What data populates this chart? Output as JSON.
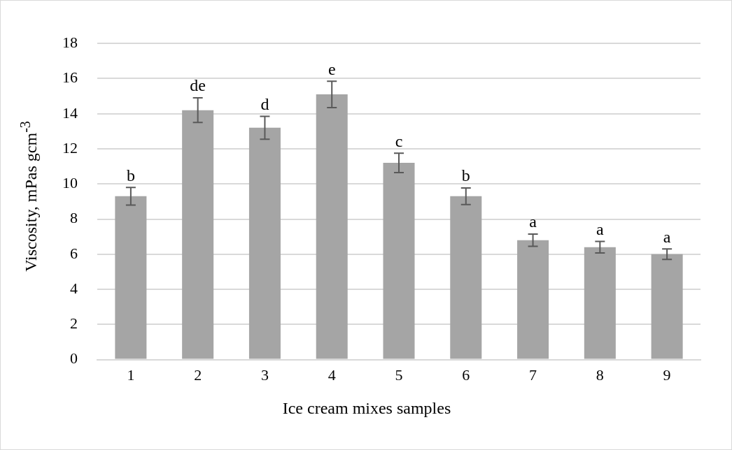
{
  "chart_data": {
    "type": "bar",
    "xlabel": "Ice cream mixes samples",
    "ylabel": "Viscosity, mPas gcm$^{-3}$",
    "categories": [
      "1",
      "2",
      "3",
      "4",
      "5",
      "6",
      "7",
      "8",
      "9"
    ],
    "values": [
      9.3,
      14.2,
      13.2,
      15.1,
      11.2,
      9.3,
      6.8,
      6.4,
      6.0
    ],
    "errors": [
      0.5,
      0.7,
      0.65,
      0.75,
      0.55,
      0.47,
      0.35,
      0.33,
      0.3
    ],
    "color": "#a5a5a5",
    "ylim": [
      0,
      18
    ],
    "yticks": [
      0,
      2,
      4,
      6,
      8,
      10,
      12,
      14,
      16,
      18
    ],
    "grid": "y",
    "legend": false,
    "annotations": [
      {
        "text": "b",
        "x": "1",
        "y": 9.8
      },
      {
        "text": "de",
        "x": "2",
        "y": 14.9
      },
      {
        "text": "d",
        "x": "3",
        "y": 13.85
      },
      {
        "text": "e",
        "x": "4",
        "y": 15.85
      },
      {
        "text": "c",
        "x": "5",
        "y": 11.75
      },
      {
        "text": "b",
        "x": "6",
        "y": 9.77
      },
      {
        "text": "a",
        "x": "7",
        "y": 7.15
      },
      {
        "text": "a",
        "x": "8",
        "y": 6.73
      },
      {
        "text": "a",
        "x": "9",
        "y": 6.3
      }
    ]
  }
}
